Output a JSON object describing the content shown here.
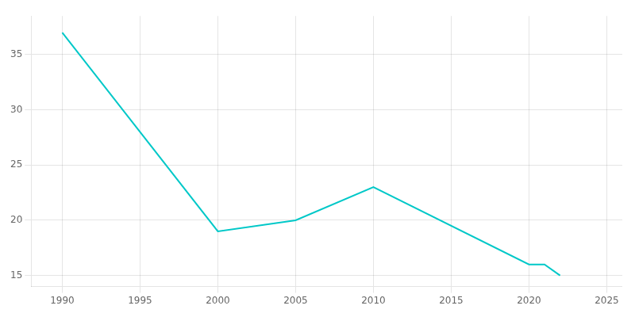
{
  "chart_data": {
    "type": "line",
    "x": [
      1990,
      2000,
      2005,
      2010,
      2020,
      2021,
      2022
    ],
    "values": [
      37,
      19,
      20,
      23,
      16,
      16,
      15
    ],
    "color": "#00c8c8",
    "xlim": [
      1988,
      2026
    ],
    "ylim": [
      14,
      38.5
    ],
    "xticks": [
      1990,
      1995,
      2000,
      2005,
      2010,
      2015,
      2020,
      2025
    ],
    "yticks": [
      15,
      20,
      25,
      30,
      35
    ],
    "grid": true
  }
}
